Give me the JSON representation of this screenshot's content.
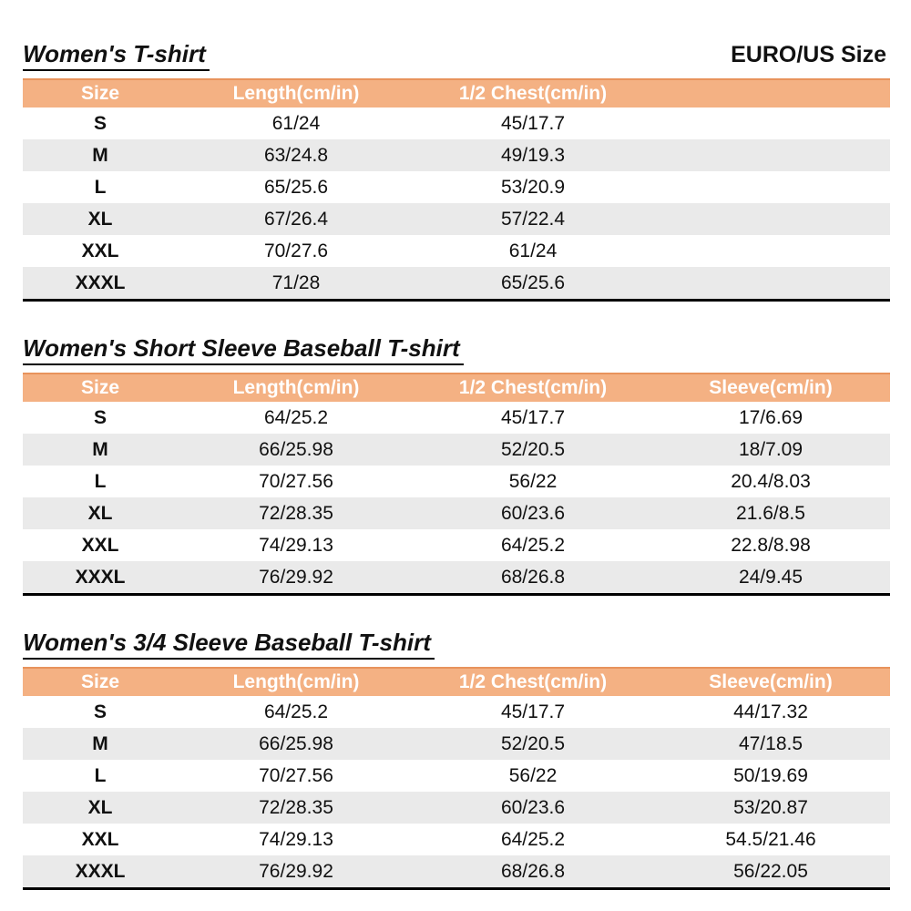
{
  "page": {
    "size_standard": "EURO/US Size"
  },
  "colors": {
    "header_bg": "#F4B183",
    "header_top_border": "#E8935C",
    "header_text": "#FFFFFF",
    "row_alt_bg": "#EAEAEA",
    "bottom_border": "#000000"
  },
  "tables": [
    {
      "title": "Women's T-shirt",
      "columns": [
        "Size",
        "Length(cm/in)",
        "1/2 Chest(cm/in)",
        ""
      ],
      "rows": [
        [
          "S",
          "61/24",
          "45/17.7",
          ""
        ],
        [
          "M",
          "63/24.8",
          "49/19.3",
          ""
        ],
        [
          "L",
          "65/25.6",
          "53/20.9",
          ""
        ],
        [
          "XL",
          "67/26.4",
          "57/22.4",
          ""
        ],
        [
          "XXL",
          "70/27.6",
          "61/24",
          ""
        ],
        [
          "XXXL",
          "71/28",
          "65/25.6",
          ""
        ]
      ]
    },
    {
      "title": "Women's Short Sleeve Baseball T-shirt",
      "columns": [
        "Size",
        "Length(cm/in)",
        "1/2 Chest(cm/in)",
        "Sleeve(cm/in)"
      ],
      "rows": [
        [
          "S",
          "64/25.2",
          "45/17.7",
          "17/6.69"
        ],
        [
          "M",
          "66/25.98",
          "52/20.5",
          "18/7.09"
        ],
        [
          "L",
          "70/27.56",
          "56/22",
          "20.4/8.03"
        ],
        [
          "XL",
          "72/28.35",
          "60/23.6",
          "21.6/8.5"
        ],
        [
          "XXL",
          "74/29.13",
          "64/25.2",
          "22.8/8.98"
        ],
        [
          "XXXL",
          "76/29.92",
          "68/26.8",
          "24/9.45"
        ]
      ]
    },
    {
      "title": "Women's 3/4 Sleeve Baseball T-shirt",
      "columns": [
        "Size",
        "Length(cm/in)",
        "1/2 Chest(cm/in)",
        "Sleeve(cm/in)"
      ],
      "rows": [
        [
          "S",
          "64/25.2",
          "45/17.7",
          "44/17.32"
        ],
        [
          "M",
          "66/25.98",
          "52/20.5",
          "47/18.5"
        ],
        [
          "L",
          "70/27.56",
          "56/22",
          "50/19.69"
        ],
        [
          "XL",
          "72/28.35",
          "60/23.6",
          "53/20.87"
        ],
        [
          "XXL",
          "74/29.13",
          "64/25.2",
          "54.5/21.46"
        ],
        [
          "XXXL",
          "76/29.92",
          "68/26.8",
          "56/22.05"
        ]
      ]
    }
  ]
}
